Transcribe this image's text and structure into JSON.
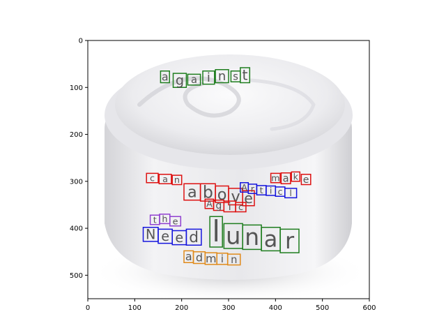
{
  "chart_data": {
    "type": "scatter",
    "title": "",
    "xlabel": "",
    "ylabel": "",
    "xlim": [
      0,
      600
    ],
    "ylim": [
      550,
      0
    ],
    "x_ticks": [
      "0",
      "100",
      "200",
      "300",
      "400",
      "500",
      "600"
    ],
    "y_ticks": [
      "0",
      "100",
      "200",
      "300",
      "400",
      "500"
    ],
    "grid": false,
    "background": {
      "subject": "white cream jar",
      "colors": {
        "cream": "#f1f1f3",
        "jar": "#e4e4e7",
        "shadow": "#cfcfd3"
      }
    },
    "words": [
      {
        "text": "against",
        "color": "#1e7d1e",
        "boxes": [
          [
            [
              155,
              65
            ],
            [
              174,
              65
            ],
            [
              174,
              90
            ],
            [
              155,
              90
            ]
          ],
          [
            [
              182,
              70
            ],
            [
              210,
              70
            ],
            [
              210,
              100
            ],
            [
              182,
              100
            ]
          ],
          [
            [
              213,
              72
            ],
            [
              240,
              72
            ],
            [
              240,
              95
            ],
            [
              213,
              95
            ]
          ],
          [
            [
              245,
              65
            ],
            [
              270,
              65
            ],
            [
              270,
              93
            ],
            [
              245,
              93
            ]
          ],
          [
            [
              272,
              62
            ],
            [
              300,
              62
            ],
            [
              300,
              90
            ],
            [
              272,
              90
            ]
          ],
          [
            [
              305,
              65
            ],
            [
              325,
              65
            ],
            [
              325,
              88
            ],
            [
              305,
              88
            ]
          ],
          [
            [
              325,
              58
            ],
            [
              345,
              58
            ],
            [
              345,
              90
            ],
            [
              325,
              90
            ]
          ]
        ]
      },
      {
        "text": "can",
        "color": "#dd1111",
        "boxes": [
          [
            [
              125,
              283
            ],
            [
              150,
              283
            ],
            [
              150,
              303
            ],
            [
              125,
              303
            ]
          ],
          [
            [
              152,
              285
            ],
            [
              178,
              285
            ],
            [
              178,
              305
            ],
            [
              152,
              305
            ]
          ],
          [
            [
              180,
              287
            ],
            [
              200,
              287
            ],
            [
              200,
              307
            ],
            [
              180,
              307
            ]
          ]
        ]
      },
      {
        "text": "make",
        "color": "#dd1111",
        "boxes": [
          [
            [
              390,
              283
            ],
            [
              410,
              283
            ],
            [
              410,
              303
            ],
            [
              390,
              303
            ]
          ],
          [
            [
              412,
              282
            ],
            [
              432,
              282
            ],
            [
              432,
              305
            ],
            [
              412,
              305
            ]
          ],
          [
            [
              434,
              280
            ],
            [
              452,
              280
            ],
            [
              452,
              300
            ],
            [
              434,
              300
            ]
          ],
          [
            [
              455,
              285
            ],
            [
              475,
              285
            ],
            [
              475,
              307
            ],
            [
              455,
              307
            ]
          ]
        ]
      },
      {
        "text": "above",
        "color": "#dd1111",
        "boxes": [
          [
            [
              205,
              305
            ],
            [
              240,
              305
            ],
            [
              240,
              340
            ],
            [
              205,
              340
            ]
          ],
          [
            [
              240,
              305
            ],
            [
              272,
              305
            ],
            [
              272,
              342
            ],
            [
              240,
              342
            ]
          ],
          [
            [
              272,
              310
            ],
            [
              300,
              310
            ],
            [
              300,
              345
            ],
            [
              272,
              345
            ]
          ],
          [
            [
              300,
              315
            ],
            [
              330,
              315
            ],
            [
              330,
              350
            ],
            [
              300,
              350
            ]
          ],
          [
            [
              330,
              320
            ],
            [
              355,
              320
            ],
            [
              355,
              352
            ],
            [
              330,
              352
            ]
          ]
        ]
      },
      {
        "text": "Article",
        "color": "#1515dd",
        "boxes": [
          [
            [
              325,
              303
            ],
            [
              342,
              303
            ],
            [
              342,
              323
            ],
            [
              325,
              323
            ]
          ],
          [
            [
              342,
              306
            ],
            [
              360,
              306
            ],
            [
              360,
              326
            ],
            [
              342,
              326
            ]
          ],
          [
            [
              360,
              309
            ],
            [
              380,
              309
            ],
            [
              380,
              329
            ],
            [
              360,
              329
            ]
          ],
          [
            [
              380,
              310
            ],
            [
              400,
              310
            ],
            [
              400,
              330
            ],
            [
              380,
              330
            ]
          ],
          [
            [
              400,
              312
            ],
            [
              420,
              312
            ],
            [
              420,
              332
            ],
            [
              400,
              332
            ]
          ],
          [
            [
              420,
              315
            ],
            [
              445,
              315
            ],
            [
              445,
              335
            ],
            [
              420,
              335
            ]
          ]
        ]
      },
      {
        "text": "Agic",
        "color": "#dd1111",
        "boxes": [
          [
            [
              250,
              338
            ],
            [
              268,
              338
            ],
            [
              268,
              358
            ],
            [
              250,
              358
            ]
          ],
          [
            [
              268,
              340
            ],
            [
              290,
              340
            ],
            [
              290,
              362
            ],
            [
              268,
              362
            ]
          ],
          [
            [
              290,
              342
            ],
            [
              315,
              342
            ],
            [
              315,
              365
            ],
            [
              290,
              365
            ]
          ],
          [
            [
              315,
              345
            ],
            [
              337,
              345
            ],
            [
              337,
              365
            ],
            [
              315,
              365
            ]
          ]
        ]
      },
      {
        "text": "the",
        "color": "#9040d0",
        "boxes": [
          [
            [
              133,
              372
            ],
            [
              153,
              372
            ],
            [
              153,
              392
            ],
            [
              133,
              392
            ]
          ],
          [
            [
              153,
              370
            ],
            [
              175,
              370
            ],
            [
              175,
              390
            ],
            [
              153,
              390
            ]
          ],
          [
            [
              175,
              375
            ],
            [
              198,
              375
            ],
            [
              198,
              395
            ],
            [
              175,
              395
            ]
          ]
        ]
      },
      {
        "text": "Need",
        "color": "#1515dd",
        "boxes": [
          [
            [
              118,
              398
            ],
            [
              150,
              398
            ],
            [
              150,
              428
            ],
            [
              118,
              428
            ]
          ],
          [
            [
              150,
              402
            ],
            [
              180,
              402
            ],
            [
              180,
              432
            ],
            [
              150,
              432
            ]
          ],
          [
            [
              180,
              405
            ],
            [
              210,
              405
            ],
            [
              210,
              435
            ],
            [
              180,
              435
            ]
          ],
          [
            [
              210,
              402
            ],
            [
              242,
              402
            ],
            [
              242,
              436
            ],
            [
              210,
              436
            ]
          ]
        ]
      },
      {
        "text": "lunar",
        "color": "#1e7d1e",
        "boxes": [
          [
            [
              260,
              375
            ],
            [
              287,
              375
            ],
            [
              287,
              440
            ],
            [
              260,
              440
            ]
          ],
          [
            [
              290,
              390
            ],
            [
              330,
              390
            ],
            [
              330,
              443
            ],
            [
              290,
              443
            ]
          ],
          [
            [
              330,
              393
            ],
            [
              370,
              393
            ],
            [
              370,
              445
            ],
            [
              330,
              445
            ]
          ],
          [
            [
              370,
              398
            ],
            [
              410,
              398
            ],
            [
              410,
              448
            ],
            [
              370,
              448
            ]
          ],
          [
            [
              410,
              402
            ],
            [
              450,
              402
            ],
            [
              450,
              452
            ],
            [
              410,
              452
            ]
          ]
        ]
      },
      {
        "text": "admin",
        "color": "#e08a1a",
        "boxes": [
          [
            [
              205,
              448
            ],
            [
              225,
              448
            ],
            [
              225,
              473
            ],
            [
              205,
              473
            ]
          ],
          [
            [
              225,
              450
            ],
            [
              250,
              450
            ],
            [
              250,
              475
            ],
            [
              225,
              475
            ]
          ],
          [
            [
              250,
              452
            ],
            [
              275,
              452
            ],
            [
              275,
              477
            ],
            [
              250,
              477
            ]
          ],
          [
            [
              275,
              453
            ],
            [
              298,
              453
            ],
            [
              298,
              477
            ],
            [
              275,
              477
            ]
          ],
          [
            [
              298,
              455
            ],
            [
              325,
              455
            ],
            [
              325,
              478
            ],
            [
              298,
              478
            ]
          ]
        ]
      }
    ]
  }
}
